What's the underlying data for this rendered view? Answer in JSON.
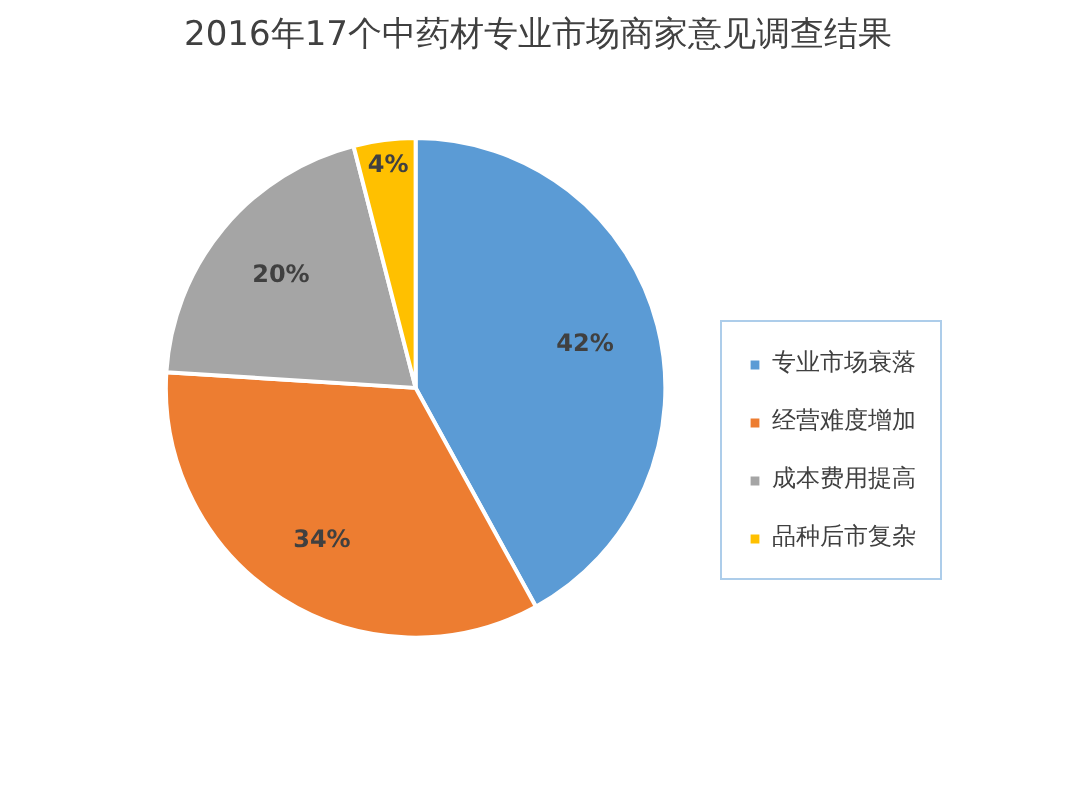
{
  "chart_data": {
    "type": "pie",
    "title": "2016年17个中药材专业市场商家意见调查结果",
    "categories": [
      "专业市场衰落",
      "经营难度增加",
      "成本费用提高",
      "品种后市复杂"
    ],
    "values": [
      42,
      34,
      20,
      4
    ],
    "colors": [
      "#5b9bd5",
      "#ed7d31",
      "#a5a5a5",
      "#ffc000"
    ],
    "value_labels": [
      "42%",
      "34%",
      "20%",
      "4%"
    ],
    "legend": "right"
  }
}
